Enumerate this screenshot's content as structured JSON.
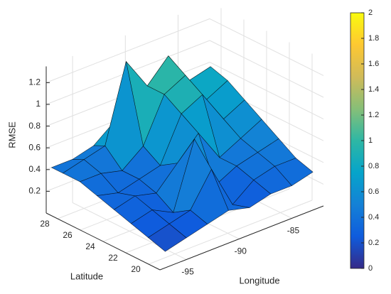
{
  "chart_data": {
    "type": "surface",
    "zlabel": "RMSE",
    "ylabel": "Latitude",
    "xlabel": "Longitude",
    "x": [
      -97,
      -95,
      -93,
      -91,
      -89,
      -87,
      -85,
      -83
    ],
    "y": [
      19,
      20.5,
      22,
      23.5,
      25,
      26.5,
      28,
      29
    ],
    "z": [
      [
        0.15,
        0.2,
        0.25,
        0.3,
        0.25,
        0.3,
        0.3,
        0.35
      ],
      [
        0.2,
        0.25,
        0.3,
        0.6,
        0.2,
        0.35,
        0.4,
        0.4
      ],
      [
        0.25,
        0.3,
        0.2,
        0.8,
        0.3,
        0.4,
        0.45,
        0.5
      ],
      [
        0.3,
        0.35,
        0.3,
        0.5,
        0.7,
        0.4,
        0.5,
        0.6
      ],
      [
        0.35,
        0.3,
        0.35,
        0.4,
        0.8,
        0.9,
        0.6,
        0.7
      ],
      [
        0.4,
        0.4,
        0.35,
        0.5,
        0.9,
        1.0,
        0.7,
        0.8
      ],
      [
        0.4,
        0.45,
        0.5,
        1.2,
        0.9,
        1.1,
        0.8,
        0.85
      ],
      [
        0.4,
        0.4,
        0.45,
        0.6,
        0.7,
        0.8,
        0.6,
        0.7
      ]
    ],
    "xlim": [
      -97.5,
      -82
    ],
    "ylim": [
      19,
      29
    ],
    "zlim": [
      0,
      1.35
    ],
    "xticks": [
      -95,
      -90,
      -85
    ],
    "yticks": [
      20,
      22,
      24,
      26,
      28
    ],
    "zticks": [
      0.2,
      0.4,
      0.6,
      0.8,
      1,
      1.2
    ],
    "clim": [
      0,
      2
    ],
    "cticks": [
      0,
      0.2,
      0.4,
      0.6,
      0.8,
      1,
      1.2,
      1.4,
      1.6,
      1.8,
      2
    ],
    "colormap": [
      "#352a87",
      "#0f5cdd",
      "#1481d6",
      "#06a4ca",
      "#2eb7a4",
      "#87bf77",
      "#d1bb59",
      "#fec832",
      "#f9fb0e"
    ],
    "grid": true,
    "edge_color": "#000000"
  }
}
